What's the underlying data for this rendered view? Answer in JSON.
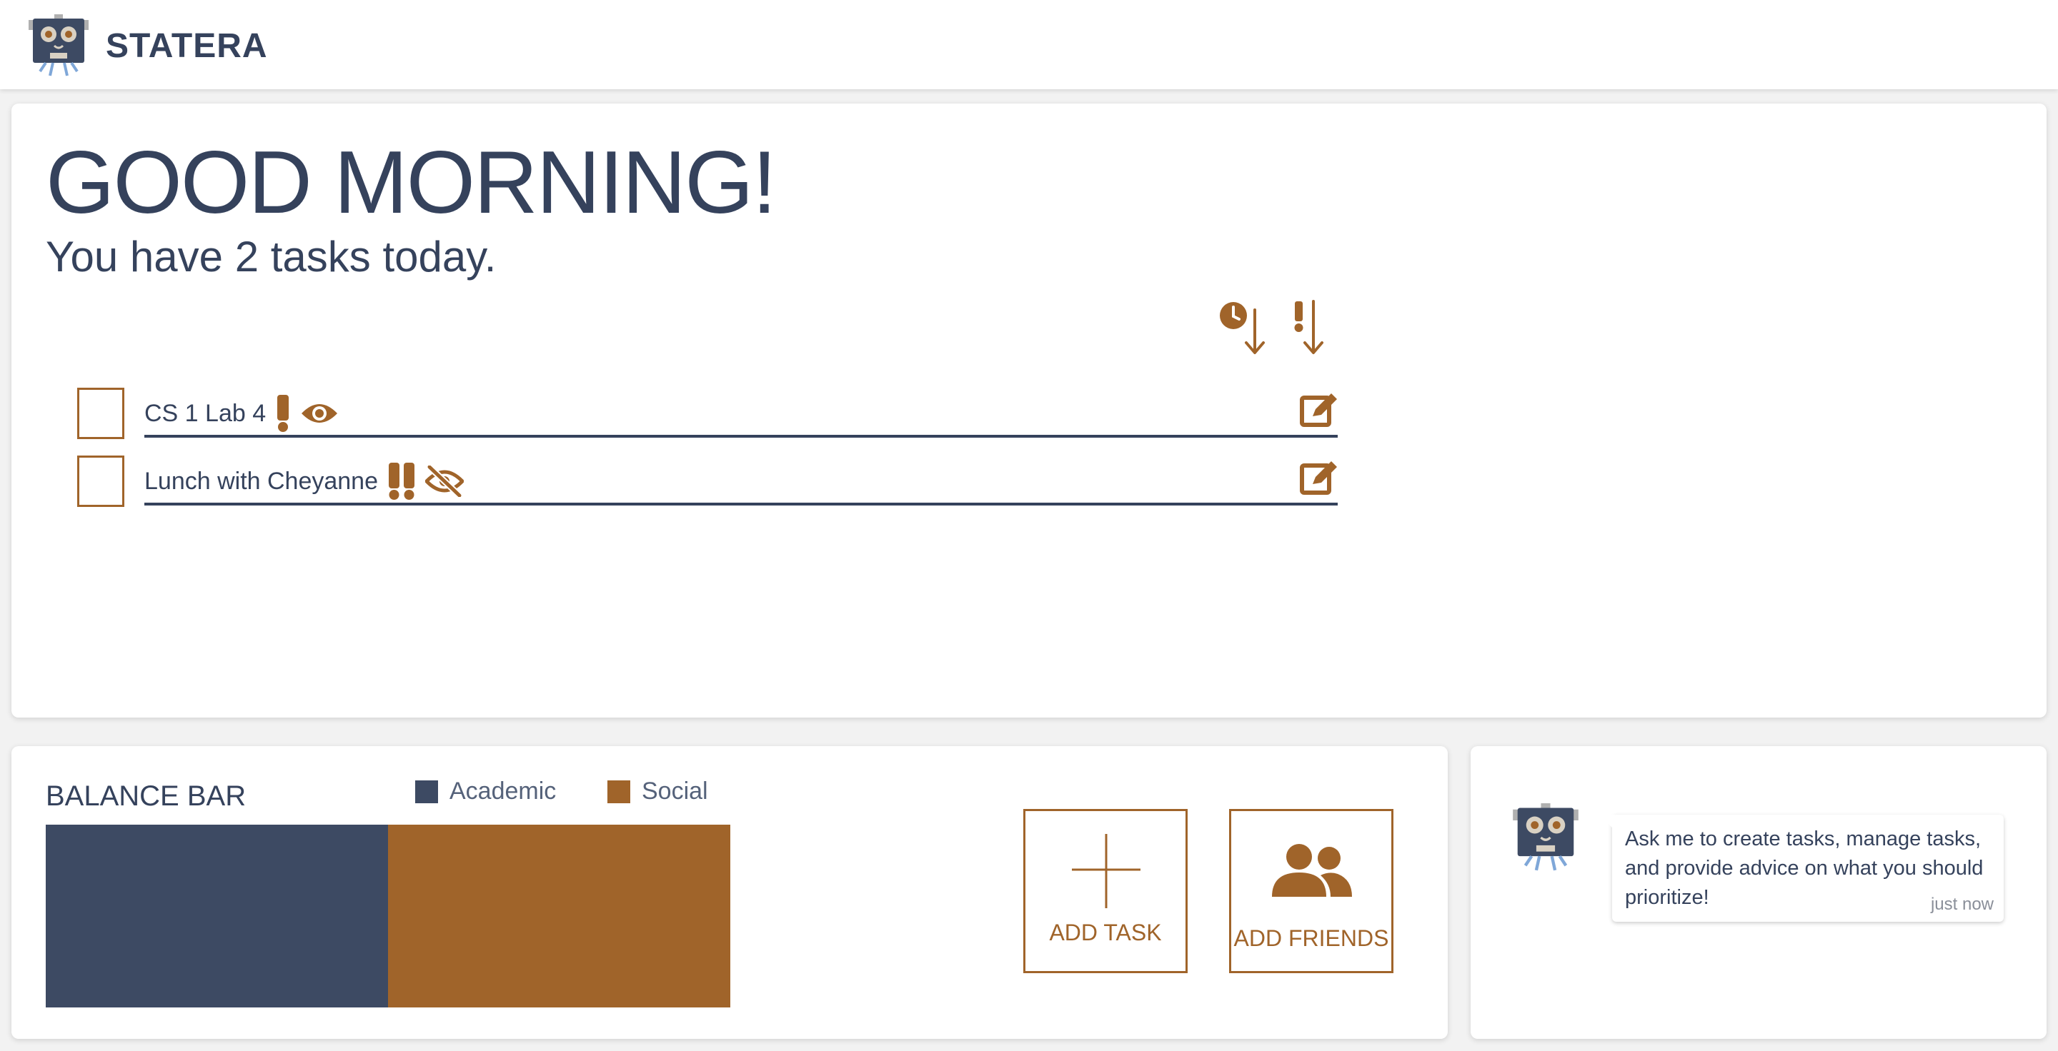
{
  "app": {
    "name": "STATERA"
  },
  "greeting": "GOOD MORNING!",
  "summary": "You have 2 tasks today.",
  "sort": {
    "by_time_icon": "clock-sort-down-icon",
    "by_priority_icon": "exclamation-sort-down-icon"
  },
  "tasks": [
    {
      "name": "CS 1 Lab 4",
      "priority": 1,
      "visibility": "visible",
      "checked": false
    },
    {
      "name": "Lunch with Cheyanne",
      "priority": 2,
      "visibility": "hidden",
      "checked": false
    }
  ],
  "balance": {
    "title": "BALANCE BAR",
    "legend": [
      {
        "label": "Academic",
        "color": "#3d4a63"
      },
      {
        "label": "Social",
        "color": "#a0642a"
      }
    ],
    "shares": [
      0.5,
      0.5
    ]
  },
  "actions": {
    "add_task": "ADD TASK",
    "add_friends": "ADD FRIENDS"
  },
  "chat": {
    "message": "Ask me to create tasks, manage tasks, and provide advice on what you should prioritize!",
    "time": "just now"
  },
  "colors": {
    "accent": "#a0642a",
    "navy": "#35425c"
  }
}
